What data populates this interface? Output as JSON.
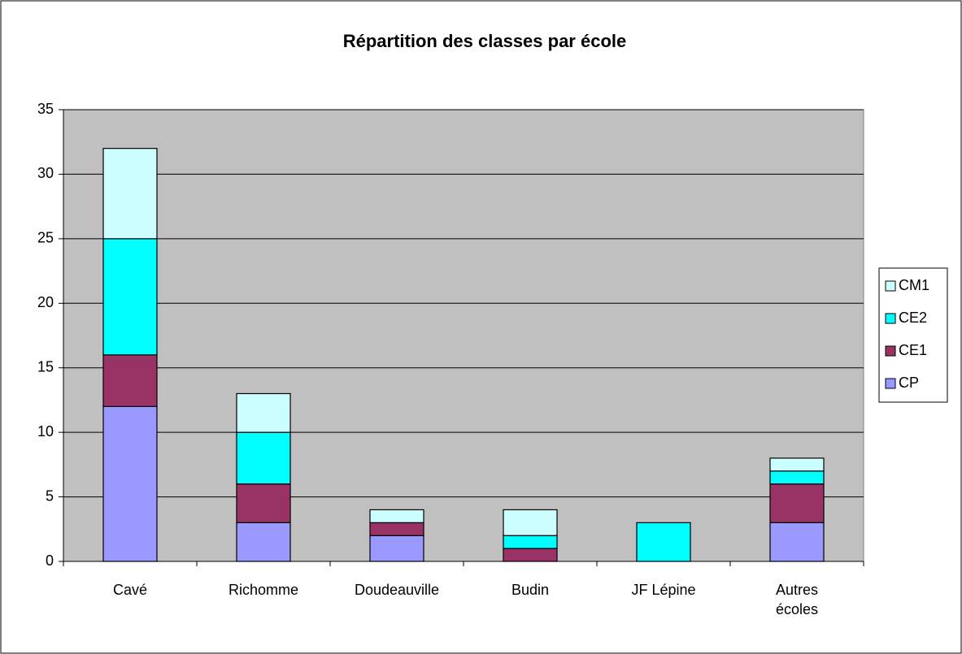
{
  "chart_data": {
    "type": "stacked_bar",
    "title": "Répartition des classes par école",
    "categories": [
      "Cavé",
      "Richomme",
      "Doudeauville",
      "Budin",
      "JF Lépine",
      "Autres écoles"
    ],
    "series": [
      {
        "name": "CP",
        "color": "#9999ff",
        "values": [
          12,
          3,
          2,
          0,
          0,
          3
        ]
      },
      {
        "name": "CE1",
        "color": "#993366",
        "values": [
          4,
          3,
          1,
          1,
          0,
          3
        ]
      },
      {
        "name": "CE2",
        "color": "#00ffff",
        "values": [
          9,
          4,
          0,
          1,
          3,
          1
        ]
      },
      {
        "name": "CM1",
        "color": "#ccffff",
        "values": [
          7,
          3,
          1,
          2,
          0,
          1
        ]
      }
    ],
    "ylim": [
      0,
      35
    ],
    "yticks": [
      0,
      5,
      10,
      15,
      20,
      25,
      30,
      35
    ],
    "grid": true,
    "legend": "right"
  }
}
